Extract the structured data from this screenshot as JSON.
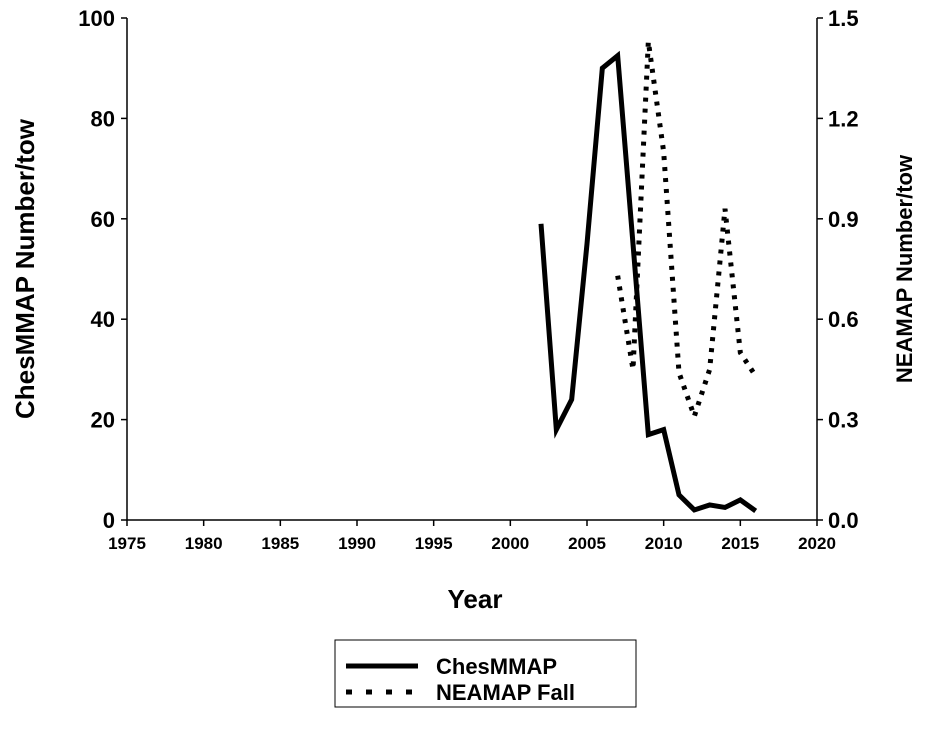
{
  "chart_data": {
    "type": "line",
    "xlabel": "Year",
    "ylabel": "ChesMMAP Number/tow",
    "y2label": "NEAMAP Number/tow",
    "xlim": [
      1975,
      2020
    ],
    "xticks": [
      1975,
      1980,
      1985,
      1990,
      1995,
      2000,
      2005,
      2010,
      2015,
      2020
    ],
    "ylim": [
      0,
      100
    ],
    "yticks": [
      0,
      20,
      40,
      60,
      80,
      100
    ],
    "y2lim": [
      0,
      1.5
    ],
    "y2ticks": [
      {
        "value": 0,
        "label": "0.0"
      },
      0.3,
      0.6,
      0.9,
      1.2,
      1.5
    ],
    "series": [
      {
        "name": "ChesMMAP",
        "color": "#000000",
        "style": "solid",
        "x": [
          2002,
          2003,
          2004,
          2005,
          2006,
          2007,
          2008,
          2009,
          2010,
          2011,
          2012,
          2013,
          2014,
          2015,
          2016
        ],
        "values": [
          59,
          18,
          24,
          55,
          90,
          92.5,
          55,
          17,
          18,
          5,
          2,
          3,
          2.5,
          4,
          1.8
        ]
      },
      {
        "name": "NEAMAP Fall",
        "color": "#000000",
        "style": "dotted",
        "axis": "y2",
        "x": [
          2007,
          2008,
          2009,
          2010,
          2011,
          2012,
          2013,
          2014,
          2015,
          2016
        ],
        "values": [
          0.73,
          0.45,
          1.43,
          1.1,
          0.44,
          0.31,
          0.45,
          0.93,
          0.5,
          0.43
        ]
      }
    ]
  }
}
